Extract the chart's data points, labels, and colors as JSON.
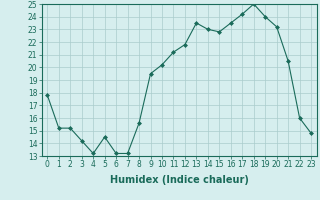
{
  "x": [
    0,
    1,
    2,
    3,
    4,
    5,
    6,
    7,
    8,
    9,
    10,
    11,
    12,
    13,
    14,
    15,
    16,
    17,
    18,
    19,
    20,
    21,
    22,
    23
  ],
  "y": [
    17.8,
    15.2,
    15.2,
    14.2,
    13.2,
    14.5,
    13.2,
    13.2,
    15.6,
    19.5,
    20.2,
    21.2,
    21.8,
    23.5,
    23.0,
    22.8,
    23.5,
    24.2,
    25.0,
    24.0,
    23.2,
    20.5,
    16.0,
    14.8
  ],
  "line_color": "#1a6b5a",
  "marker": "D",
  "marker_size": 2,
  "bg_color": "#d6eeee",
  "grid_color": "#aacccc",
  "xlabel": "Humidex (Indice chaleur)",
  "ylim": [
    13,
    25
  ],
  "xlim": [
    -0.5,
    23.5
  ],
  "yticks": [
    13,
    14,
    15,
    16,
    17,
    18,
    19,
    20,
    21,
    22,
    23,
    24,
    25
  ],
  "xticks": [
    0,
    1,
    2,
    3,
    4,
    5,
    6,
    7,
    8,
    9,
    10,
    11,
    12,
    13,
    14,
    15,
    16,
    17,
    18,
    19,
    20,
    21,
    22,
    23
  ],
  "tick_fontsize": 5.5,
  "xlabel_fontsize": 7
}
